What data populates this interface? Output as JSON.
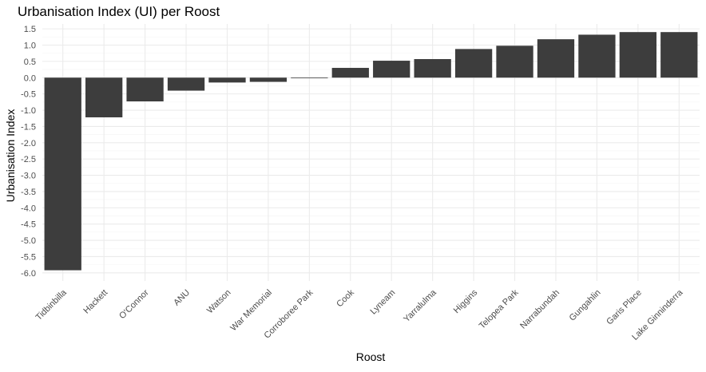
{
  "chart_data": {
    "type": "bar",
    "title": "Urbanisation Index (UI) per Roost",
    "xlabel": "Roost",
    "ylabel": "Urbanisation Index",
    "categories": [
      "Tidbinbilla",
      "Hackett",
      "O'Connor",
      "ANU",
      "Watson",
      "War Memorial",
      "Corroboree Park",
      "Cook",
      "Lyneam",
      "Yarralulma",
      "Higgins",
      "Telopea Park",
      "Narrabundah",
      "Gungahlin",
      "Garis Place",
      "Lake Ginninderra"
    ],
    "values": [
      -5.92,
      -1.22,
      -0.73,
      -0.4,
      -0.15,
      -0.13,
      -0.02,
      0.3,
      0.52,
      0.57,
      0.88,
      0.98,
      1.18,
      1.32,
      1.4,
      1.4
    ],
    "ylim": [
      -6.25,
      1.65
    ],
    "yticks": [
      -6.0,
      -5.5,
      -5.0,
      -4.5,
      -4.0,
      -3.5,
      -3.0,
      -2.5,
      -2.0,
      -1.5,
      -1.0,
      -0.5,
      0.0,
      0.5,
      1.0,
      1.5
    ],
    "ytick_labels": [
      "-6.0",
      "-5.5",
      "-5.0",
      "-4.5",
      "-4.0",
      "-3.5",
      "-3.0",
      "-2.5",
      "-2.0",
      "-1.5",
      "-1.0",
      "-0.5",
      "0.0",
      "0.5",
      "1.0",
      "1.5"
    ],
    "grid": true,
    "colors": {
      "bar": "#3d3d3d",
      "grid_major": "#ebebeb",
      "grid_minor": "#f5f5f5",
      "text": "#4d4d4d",
      "title": "#000000"
    }
  }
}
